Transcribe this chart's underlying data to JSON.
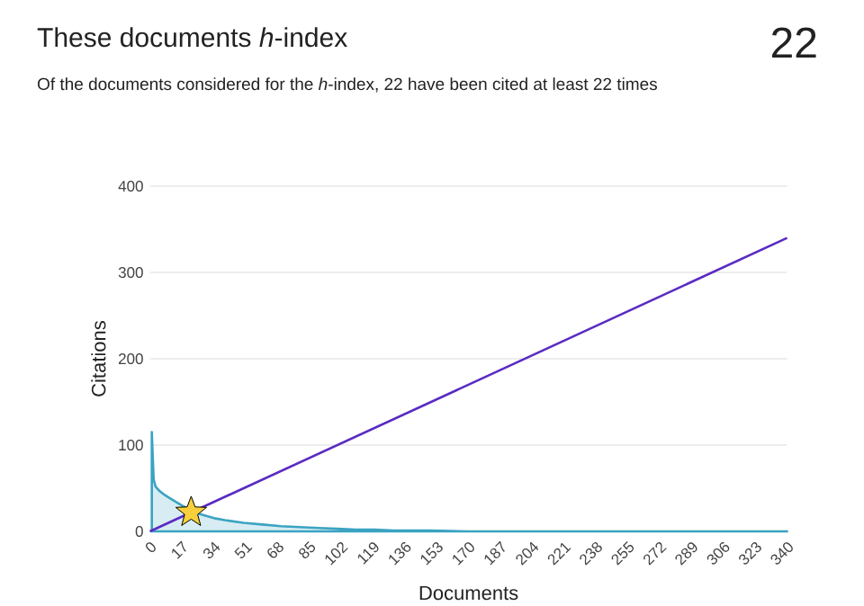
{
  "chart_data": {
    "type": "line",
    "title": "These documents *h*-index",
    "subtitle": "Of the documents considered for the *h*-index, 22 have been cited at least 22 times",
    "annotations": [
      "22"
    ],
    "xlabel": "Documents",
    "ylabel": "Citations",
    "xlim": [
      0,
      340
    ],
    "xticks": [
      0,
      17,
      34,
      51,
      68,
      85,
      102,
      119,
      136,
      153,
      170,
      187,
      204,
      221,
      238,
      255,
      272,
      289,
      306,
      323,
      340
    ],
    "ylim": [
      0,
      400
    ],
    "yticks": [
      0,
      100,
      200,
      300,
      400
    ],
    "grid": "y",
    "series": [
      {
        "type": "area",
        "color": "#3ba3c2",
        "x": [
          1,
          2,
          3,
          5,
          8,
          11,
          14,
          17,
          20,
          25,
          30,
          35,
          40,
          50,
          60,
          70,
          80,
          90,
          100,
          110,
          120,
          130,
          150,
          170,
          200,
          250,
          300,
          340
        ],
        "values": [
          115,
          60,
          52,
          47,
          42,
          38,
          34,
          30,
          27,
          21,
          18,
          15,
          13,
          10,
          8,
          6,
          5,
          4,
          3,
          2,
          2,
          1,
          1,
          0,
          0,
          0,
          0,
          0
        ]
      },
      {
        "color": "#5a2bc2",
        "x": [
          0,
          340
        ],
        "values": [
          0,
          340
        ]
      },
      {
        "type": "scatter",
        "color": "#f7cf3c",
        "marker": "star",
        "x": [
          22
        ],
        "values": [
          22
        ]
      }
    ]
  }
}
